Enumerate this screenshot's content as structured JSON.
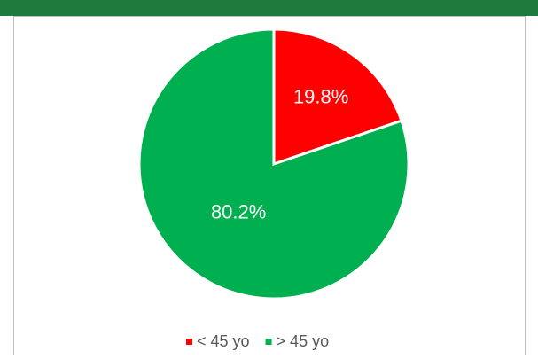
{
  "chart_data": {
    "type": "pie",
    "categories": [
      "< 45 yo",
      "> 45 yo"
    ],
    "values": [
      19.8,
      80.2
    ],
    "value_labels": [
      "19.8%",
      "80.2%"
    ],
    "colors": [
      "#ff0000",
      "#00b050"
    ],
    "legend": "bottom"
  }
}
